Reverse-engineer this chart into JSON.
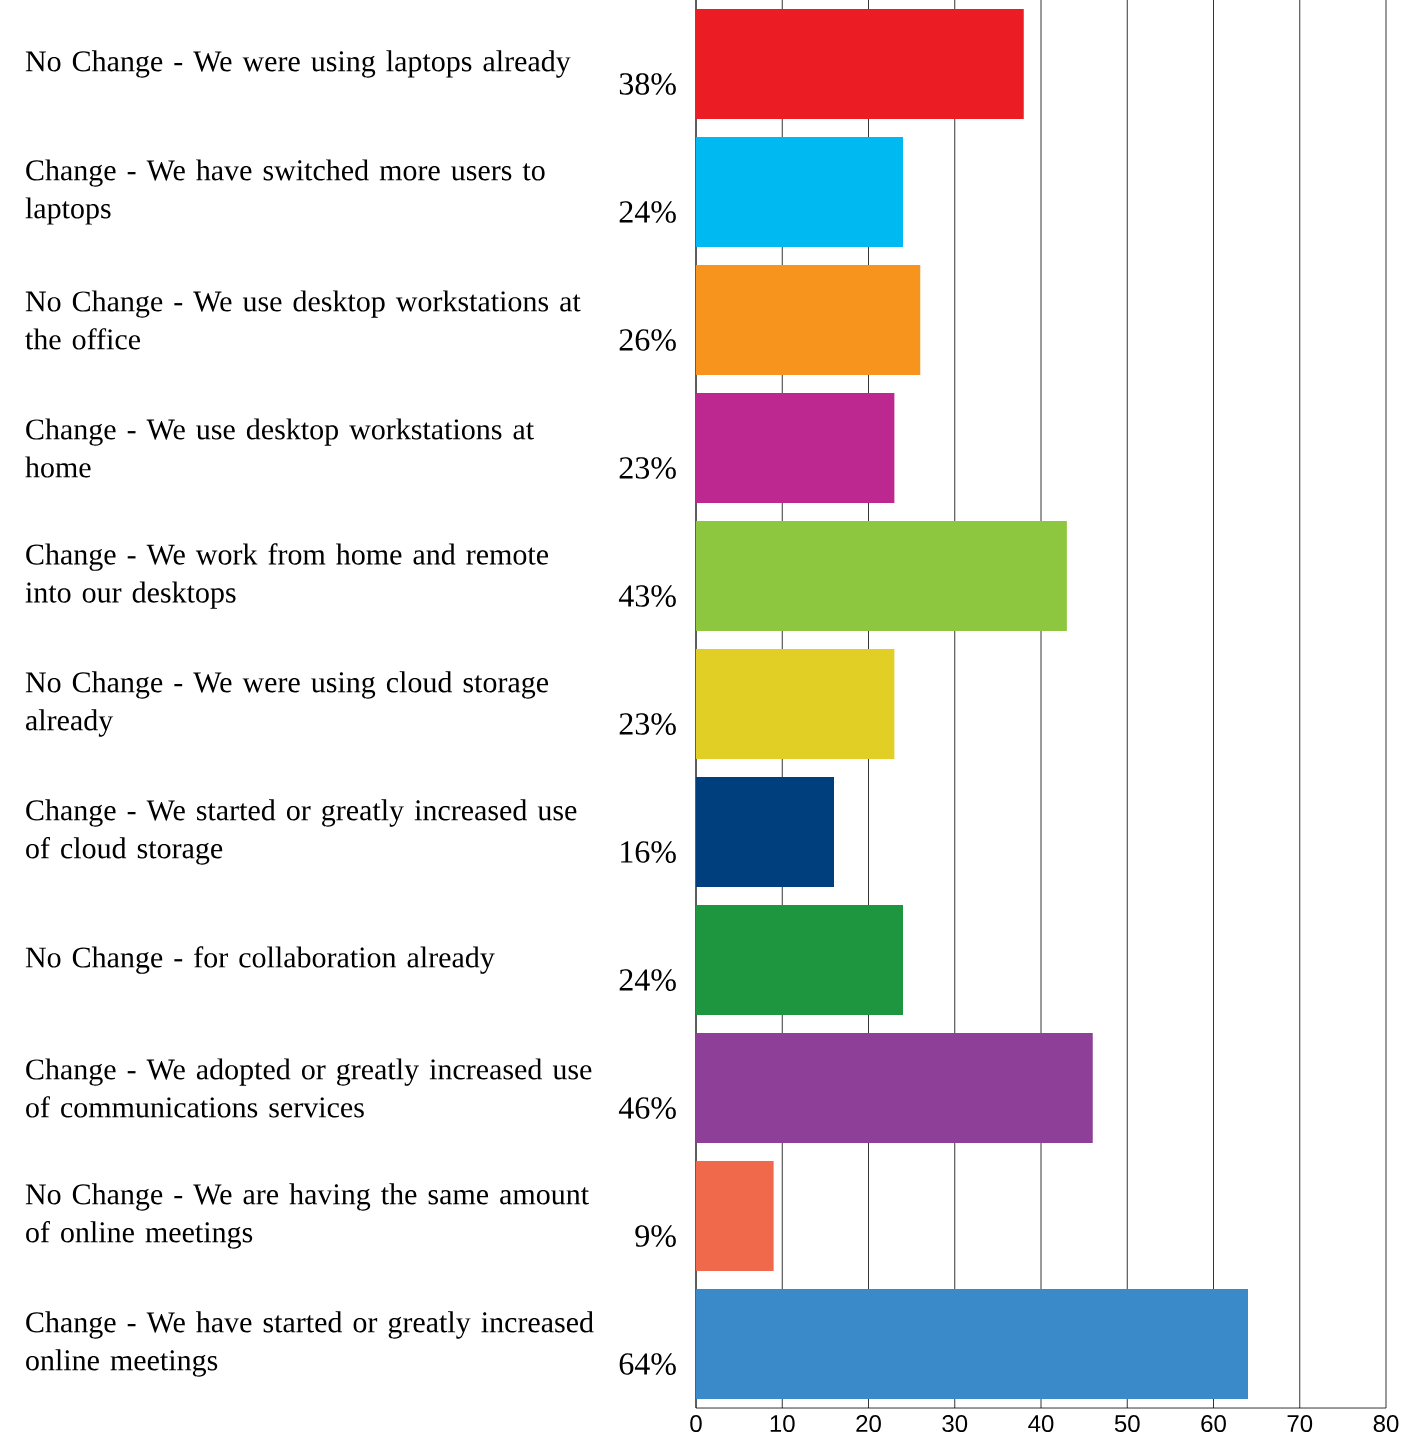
{
  "chart_data": {
    "type": "bar",
    "orientation": "horizontal",
    "categories": [
      "No Change - We were using laptops already",
      "Change - We have switched more users to laptops",
      "No Change - We use desktop workstations at the office",
      "Change - We use desktop workstations at home",
      "Change - We work from home and remote into our desktops",
      "No Change - We were using cloud storage already",
      "Change - We started or greatly increased use of cloud storage",
      "No Change - for collaboration already",
      "Change - We adopted or greatly increased use of communications services",
      "No Change - We are having the same amount of online meetings",
      "Change - We have started or greatly increased online meetings"
    ],
    "values": [
      38,
      24,
      26,
      23,
      43,
      23,
      16,
      24,
      46,
      9,
      64
    ],
    "value_labels": [
      "38%",
      "24%",
      "26%",
      "23%",
      "43%",
      "23%",
      "16%",
      "24%",
      "46%",
      "9%",
      "64%"
    ],
    "colors": [
      "#ec1c24",
      "#00b9f1",
      "#f7941d",
      "#bd2890",
      "#8dc63f",
      "#e2cf25",
      "#003f7d",
      "#1e9640",
      "#8e3f97",
      "#f0694a",
      "#3a89c9"
    ],
    "xlim": [
      0,
      80
    ],
    "xticks": [
      0,
      10,
      20,
      30,
      40,
      50,
      60,
      70,
      80
    ],
    "grid": "x"
  }
}
